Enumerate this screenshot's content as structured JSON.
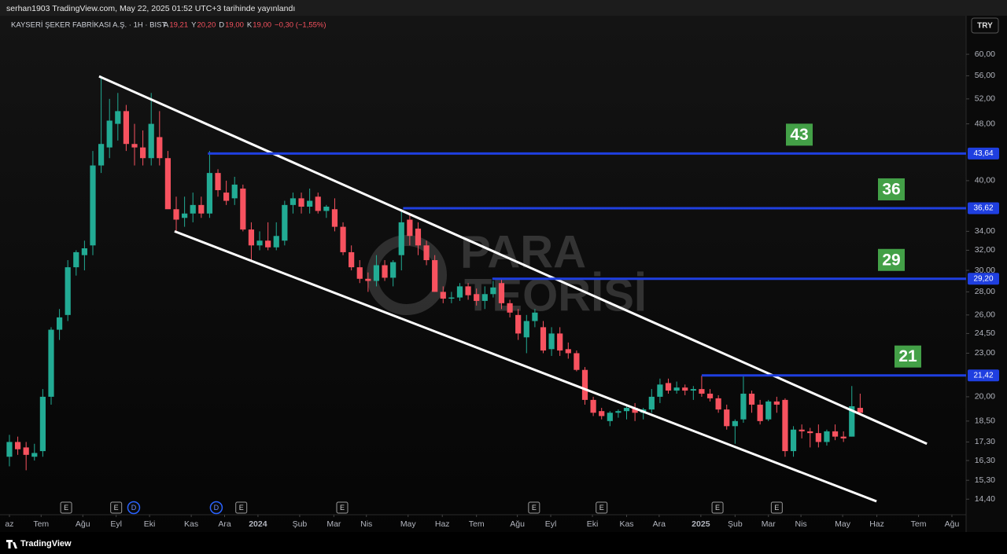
{
  "header": {
    "publish_line": "serhan1903 TradingView.com, May 22, 2025 01:52 UTC+3 tarihinde yayınlandı"
  },
  "chart_data": {
    "type": "candlestick",
    "symbol": "KAYSERİ ŞEKER FABRİKASI A.Ş. · 1H · BIST",
    "ohlc_legend": [
      {
        "key": "A",
        "value": "19,21"
      },
      {
        "key": "Y",
        "value": "20,20"
      },
      {
        "key": "D",
        "value": "19,00"
      },
      {
        "key": "K",
        "value": "19,00"
      }
    ],
    "change": "−0,30 (−1,55%)",
    "currency": "TRY",
    "log_scale": true,
    "up_color": "#22ab94",
    "down_color": "#f7525f",
    "open": [
      16.5,
      17.3,
      17.0,
      16.5,
      16.8,
      20,
      24.8,
      26,
      30.3,
      31.5,
      32.5,
      42,
      44.5,
      48,
      50,
      45,
      44.5,
      43,
      46,
      43,
      36.5,
      35.5,
      36,
      37,
      36,
      41,
      38.5,
      37.8,
      39,
      34.2,
      32.5,
      33,
      32.3,
      33,
      37,
      37.8,
      36.8,
      38,
      36.3,
      36.5,
      34.5,
      31.8,
      30.3,
      29.2,
      29,
      30.5,
      29.3,
      31.5,
      35.3,
      34.3,
      32.5,
      31,
      28,
      27.4,
      27.5,
      28.5,
      27.8,
      27.2,
      27.8,
      28.8,
      27,
      26,
      24.2,
      25.5,
      25,
      23.3,
      24.5,
      23.3,
      23,
      21.8,
      19.8,
      19.1,
      18.5,
      19,
      19.1,
      19.3,
      19,
      19.2,
      20,
      20.9,
      20.4,
      20.6,
      20.4,
      20.5,
      20.2,
      19.9,
      19.2,
      18.2,
      18.6,
      20.2,
      19.5,
      18.6,
      19.7,
      19.8,
      16.8,
      18,
      17.9,
      17.8,
      17.3,
      17.9,
      17.6,
      17.6,
      19.3
    ],
    "high": [
      17.7,
      17.6,
      17.3,
      17.2,
      20.5,
      25,
      26.5,
      31,
      32,
      33,
      44,
      56,
      52,
      53,
      51,
      48,
      47,
      53,
      50,
      44,
      38,
      38,
      38.5,
      38,
      44,
      41.5,
      40,
      40.5,
      39.5,
      35,
      34,
      35,
      35,
      37.5,
      38.5,
      38.5,
      39,
      38.5,
      37,
      37.8,
      35,
      32.5,
      31,
      29.8,
      31.5,
      31,
      31,
      36.5,
      35.8,
      35,
      33,
      31.5,
      28.5,
      28,
      28.8,
      28.8,
      28.3,
      28.5,
      29,
      29.2,
      27.3,
      26.5,
      26,
      26.5,
      25.5,
      25,
      25,
      23.8,
      23.2,
      22,
      20,
      19.3,
      19.1,
      19.2,
      19.5,
      19.6,
      19.3,
      20.5,
      21.2,
      21.2,
      21,
      20.8,
      20.7,
      21.4,
      20.5,
      20.1,
      19.5,
      18.6,
      21.4,
      20.4,
      19.8,
      19.8,
      20,
      19.9,
      18.2,
      18.3,
      18.1,
      18.3,
      18,
      18.3,
      17.9,
      20.7,
      20.2
    ],
    "low": [
      16.0,
      16.6,
      15.8,
      16.3,
      16.5,
      19.5,
      24,
      25.5,
      29.5,
      30,
      31.5,
      41,
      43,
      45.5,
      44,
      42,
      42,
      42,
      42,
      37,
      34,
      34.5,
      35,
      35.5,
      35.5,
      38,
      37,
      37,
      34,
      31,
      32,
      32,
      32,
      32.5,
      36,
      36,
      36,
      36,
      35.5,
      34,
      31.5,
      30,
      28.8,
      28,
      28.5,
      29,
      28.5,
      30,
      32.5,
      31.5,
      30.5,
      28,
      27,
      27,
      27.2,
      27.3,
      26.8,
      26.5,
      27.5,
      26.5,
      25.8,
      24,
      23,
      25,
      23,
      22.8,
      22.8,
      22.6,
      21.7,
      19.5,
      18.8,
      18.6,
      18.2,
      18.7,
      18.6,
      18.5,
      18.6,
      19,
      19.6,
      20.2,
      20.2,
      20.1,
      19.8,
      20,
      19.7,
      19,
      18,
      17.2,
      18.4,
      19,
      18.3,
      18.5,
      19,
      16.5,
      16.5,
      17.5,
      17,
      17,
      17.1,
      17.4,
      17.3,
      17.6,
      19
    ],
    "close": [
      17.3,
      16.9,
      16.6,
      16.7,
      20.0,
      24.8,
      25.8,
      30.3,
      31.8,
      32.2,
      42,
      45,
      48.5,
      50,
      45,
      44.5,
      43,
      48,
      43,
      36.5,
      35.3,
      36,
      37,
      36,
      41,
      38.8,
      37.5,
      39.5,
      34.2,
      32.5,
      33,
      32.3,
      33.5,
      37,
      37.8,
      36.8,
      37.5,
      36.3,
      36.8,
      34.5,
      31.8,
      30.3,
      29.2,
      29,
      30.5,
      29.3,
      30.8,
      35,
      33.5,
      32.5,
      31,
      28,
      27.4,
      27.5,
      28.5,
      27.7,
      27.2,
      27.8,
      28.4,
      27,
      26.2,
      24.5,
      25.5,
      26.2,
      23.2,
      24.5,
      23.2,
      23,
      21.8,
      19.8,
      19,
      18.8,
      19,
      19.1,
      19.3,
      19,
      19.2,
      20,
      20.8,
      20.4,
      20.6,
      20.4,
      20.5,
      20.2,
      19.9,
      19.2,
      18.2,
      18.5,
      20.2,
      19.5,
      18.5,
      19.7,
      19.5,
      16.8,
      18,
      17.9,
      17.8,
      17.3,
      17.9,
      17.6,
      17.5,
      19.4,
      19.0
    ],
    "xlim": [
      -1.13,
      114.7
    ],
    "xticks": [
      {
        "value": 0,
        "label": "az"
      },
      {
        "value": 3.8,
        "label": "Tem"
      },
      {
        "value": 8.8,
        "label": "Ağu"
      },
      {
        "value": 12.8,
        "label": "Eyl"
      },
      {
        "value": 16.8,
        "label": "Eki"
      },
      {
        "value": 21.8,
        "label": "Kas"
      },
      {
        "value": 25.8,
        "label": "Ara"
      },
      {
        "value": 29.8,
        "label": "2024"
      },
      {
        "value": 34.8,
        "label": "Şub"
      },
      {
        "value": 38.9,
        "label": "Mar"
      },
      {
        "value": 42.8,
        "label": "Nis"
      },
      {
        "value": 47.8,
        "label": "May"
      },
      {
        "value": 51.9,
        "label": "Haz"
      },
      {
        "value": 56,
        "label": "Tem"
      },
      {
        "value": 60.9,
        "label": "Ağu"
      },
      {
        "value": 64.9,
        "label": "Eyl"
      },
      {
        "value": 69.9,
        "label": "Eki"
      },
      {
        "value": 74,
        "label": "Kas"
      },
      {
        "value": 77.9,
        "label": "Ara"
      },
      {
        "value": 82.9,
        "label": "2025"
      },
      {
        "value": 87,
        "label": "Şub"
      },
      {
        "value": 91,
        "label": "Mar"
      },
      {
        "value": 94.9,
        "label": "Nis"
      },
      {
        "value": 99.9,
        "label": "May"
      },
      {
        "value": 104,
        "label": "Haz"
      },
      {
        "value": 109,
        "label": "Tem"
      },
      {
        "value": 113,
        "label": "Ağu"
      }
    ],
    "ylim": [
      13.7,
      67.9
    ],
    "yticks": [
      {
        "value": 60,
        "label": "60,00"
      },
      {
        "value": 56,
        "label": "56,00"
      },
      {
        "value": 52,
        "label": "52,00"
      },
      {
        "value": 48,
        "label": "48,00"
      },
      {
        "value": 40,
        "label": "40,00"
      },
      {
        "value": 34,
        "label": "34,00"
      },
      {
        "value": 32,
        "label": "32,00"
      },
      {
        "value": 30,
        "label": "30,00"
      },
      {
        "value": 28,
        "label": "28,00"
      },
      {
        "value": 26,
        "label": "26,00"
      },
      {
        "value": 24.5,
        "label": "24,50"
      },
      {
        "value": 23,
        "label": "23,00"
      },
      {
        "value": 20,
        "label": "20,00"
      },
      {
        "value": 18.5,
        "label": "18,50"
      },
      {
        "value": 17.3,
        "label": "17,30"
      },
      {
        "value": 16.3,
        "label": "16,30"
      },
      {
        "value": 15.3,
        "label": "15,30"
      },
      {
        "value": 14.4,
        "label": "14,40"
      }
    ],
    "levels": [
      {
        "value": 43.64,
        "label": "43,64",
        "start": 23.8,
        "tag": "43"
      },
      {
        "value": 36.62,
        "label": "36,62",
        "start": 47.2,
        "tag": "36"
      },
      {
        "value": 29.2,
        "label": "29,20",
        "start": 57.9,
        "tag": "29"
      },
      {
        "value": 21.42,
        "label": "21,42",
        "start": 83,
        "tag": "21"
      }
    ],
    "level_color": "#1f3fe0",
    "tag_color": "#43a047",
    "trend_lines": [
      {
        "x": [
          10.75,
          110
        ],
        "y": [
          55.9,
          17.2
        ]
      },
      {
        "x": [
          19.8,
          103.96
        ],
        "y": [
          34.0,
          14.3
        ]
      }
    ],
    "trend_color": "#ffffff",
    "events": [
      {
        "label": "E",
        "x": 6.8
      },
      {
        "label": "E",
        "x": 12.8
      },
      {
        "label": "D",
        "x": 14.9
      },
      {
        "label": "D",
        "x": 24.8
      },
      {
        "label": "E",
        "x": 27.8
      },
      {
        "label": "E",
        "x": 39.9
      },
      {
        "label": "E",
        "x": 62.9
      },
      {
        "label": "E",
        "x": 71
      },
      {
        "label": "E",
        "x": 84.9
      },
      {
        "label": "E",
        "x": 92
      }
    ],
    "watermark": [
      "PARA",
      "TEORİSİ"
    ]
  },
  "footer": {
    "brand": "TradingView"
  }
}
